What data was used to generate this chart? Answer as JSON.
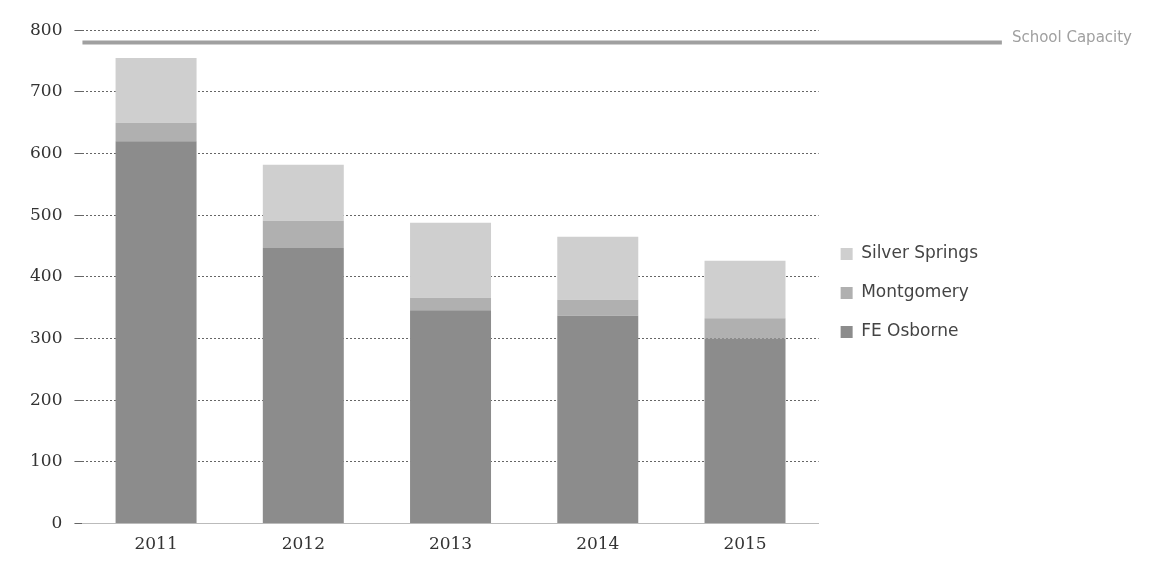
{
  "chart_data": {
    "type": "bar",
    "stacked": true,
    "categories": [
      "2011",
      "2012",
      "2013",
      "2014",
      "2015"
    ],
    "series": [
      {
        "name": "FE Osborne",
        "color": "#8c8c8c",
        "values": [
          620,
          447,
          346,
          337,
          300
        ]
      },
      {
        "name": "Montgomery",
        "color": "#b0b0b0",
        "values": [
          30,
          44,
          20,
          26,
          33
        ]
      },
      {
        "name": "Silver Springs",
        "color": "#cfcfcf",
        "values": [
          105,
          91,
          122,
          102,
          93
        ]
      }
    ],
    "ylim": [
      0,
      800
    ],
    "yticks": [
      0,
      100,
      200,
      300,
      400,
      500,
      600,
      700,
      800
    ],
    "grid": "y",
    "legend": "right",
    "ref_lines": [
      {
        "axis": "y",
        "value": 780,
        "label": "School Capacity",
        "color": "#a0a0a0"
      }
    ]
  }
}
